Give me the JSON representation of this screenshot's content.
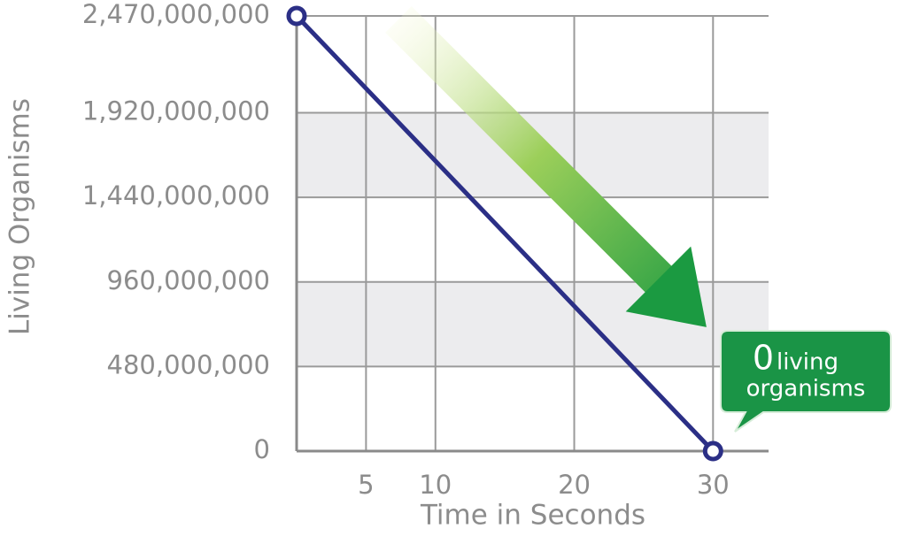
{
  "chart_data": {
    "type": "line",
    "x_label": "Time in Seconds",
    "y_label": "Living Organisms",
    "x": [
      0,
      30
    ],
    "values": [
      2470000000,
      0
    ],
    "color": "#2b2f86",
    "xlim": [
      0,
      34
    ],
    "xticks": [
      5,
      10,
      20,
      30
    ],
    "ylim": [
      0,
      2470000000
    ],
    "yticks": [
      0,
      {
        "value": 480000000,
        "label": "480,000,000"
      },
      {
        "value": 960000000,
        "label": "960,000,000"
      },
      {
        "value": 1440000000,
        "label": "1,440,000,000"
      },
      {
        "value": 1920000000,
        "label": "1,920,000,000"
      },
      {
        "value": 2470000000,
        "label": "2,470,000,000"
      }
    ],
    "grid": true,
    "callout": [
      "0",
      "living",
      "organisms"
    ]
  }
}
